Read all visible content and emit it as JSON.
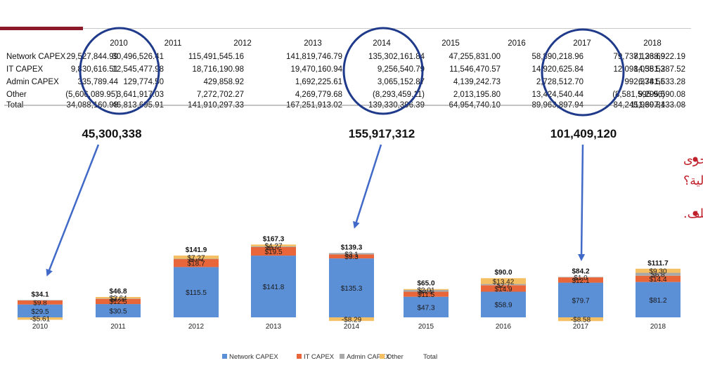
{
  "table": {
    "years": [
      "2010",
      "2011",
      "2012",
      "2013",
      "2014",
      "2015",
      "2016",
      "2017",
      "2018"
    ],
    "rows": [
      {
        "label": "Network CAPEX",
        "values": [
          "29,527,844.99",
          "30,496,526.41",
          "115,491,545.16",
          "141,819,746.79",
          "135,302,161.84",
          "47,255,831.00",
          "58,890,218.96",
          "79,737,136.69",
          "81,238,922.19"
        ]
      },
      {
        "label": "IT CAPEX",
        "values": [
          "9,830,616.51",
          "12,545,477.98",
          "18,716,190.98",
          "19,470,160.94",
          "9,256,540.79",
          "11,546,470.57",
          "14,920,625.84",
          "12,098,055.53",
          "14,381,287.52"
        ]
      },
      {
        "label": "Admin CAPEX",
        "values": [
          "335,789.44",
          "129,774.50",
          "429,858.92",
          "1,692,225.61",
          "3,065,152.87",
          "4,139,242.73",
          "2,728,512.70",
          "992,334.55",
          "6,781,633.28"
        ]
      },
      {
        "label": "Other",
        "values": [
          "(5,606,089.95)",
          "3,641,917.03",
          "7,272,702.27",
          "4,269,779.68",
          "(8,293,459.11)",
          "2,013,195.80",
          "13,424,540.44",
          "(8,581,595.96)",
          "9,295,590.08"
        ]
      },
      {
        "label": "Total",
        "values": [
          "34,088,160.98",
          "46,813,695.91",
          "141,910,297.33",
          "167,251,913.02",
          "139,330,396.39",
          "64,954,740.10",
          "89,963,897.94",
          "84,245,930.81",
          "111,697,433.08"
        ]
      }
    ]
  },
  "callouts": [
    "45,300,338",
    "155,917,312",
    "101,409,120"
  ],
  "bullets": [
    {
      "line1": "لماذا تم احتساب الدفعات على الحساب Down Payments بطريقة موجبة احيانا وسالبة احيانا اخرى",
      "line2": "مما احدث فروقات في احتساب النفقات الرأسمالية؟"
    },
    {
      "line1": "المطلوب تقرير توضيحي يشرح ماهية هذه الدفعات واسباب احتسابها بشكل مختلف.",
      "line2": ""
    }
  ],
  "colors": {
    "network": "#5b8fd6",
    "it": "#e8663a",
    "admin": "#a9a9a9",
    "other": "#f5bf63",
    "annotation": "#c0202a",
    "arrow": "#4169c8",
    "circle": "#1f3a8a"
  },
  "chart_data": {
    "type": "bar",
    "stacked": true,
    "categories": [
      "2010",
      "2011",
      "2012",
      "2013",
      "2014",
      "2015",
      "2016",
      "2017",
      "2018"
    ],
    "series": [
      {
        "name": "Network CAPEX",
        "values": [
          29.5,
          30.5,
          115.5,
          141.8,
          135.3,
          47.3,
          58.9,
          79.7,
          81.2
        ],
        "labels": [
          "$29.5",
          "$30.5",
          "$115.5",
          "$141.8",
          "$135.3",
          "$47.3",
          "$58.9",
          "$79.7",
          "$81.2"
        ]
      },
      {
        "name": "IT CAPEX",
        "values": [
          9.8,
          12.5,
          18.7,
          19.5,
          9.3,
          11.5,
          14.9,
          12.1,
          14.4
        ],
        "labels": [
          "$9.8",
          "$12.5",
          "$18.7",
          "$19.5",
          "$9.3",
          "$11.5",
          "$14.9",
          "$12.1",
          "$14.4"
        ]
      },
      {
        "name": "Admin CAPEX",
        "values": [
          0.34,
          0.13,
          0.43,
          1.69,
          3.07,
          4.14,
          2.73,
          0.99,
          6.78
        ],
        "labels": [
          "",
          "$0.1",
          "$0.4",
          "$1.7",
          "$3.1",
          "$4.1",
          "$2.7",
          "$1.0",
          "$6.8"
        ]
      },
      {
        "name": "Other",
        "values": [
          -5.61,
          3.64,
          7.27,
          4.27,
          -8.29,
          2.01,
          13.42,
          -8.58,
          9.3
        ],
        "labels": [
          "-$5.61",
          "$3.64",
          "$7.27",
          "$4.27",
          "-$8.29",
          "$2.01",
          "$13.42",
          "-$8.58",
          "$9.30"
        ]
      },
      {
        "name": "Total",
        "values": [
          34.1,
          46.8,
          141.9,
          167.3,
          139.3,
          65.0,
          90.0,
          84.2,
          111.7
        ],
        "labels": [
          "$34.1",
          "$46.8",
          "$141.9",
          "$167.3",
          "$139.3",
          "$65.0",
          "$90.0",
          "$84.2",
          "$111.7"
        ]
      }
    ],
    "legend_position": "bottom",
    "grid": false
  }
}
